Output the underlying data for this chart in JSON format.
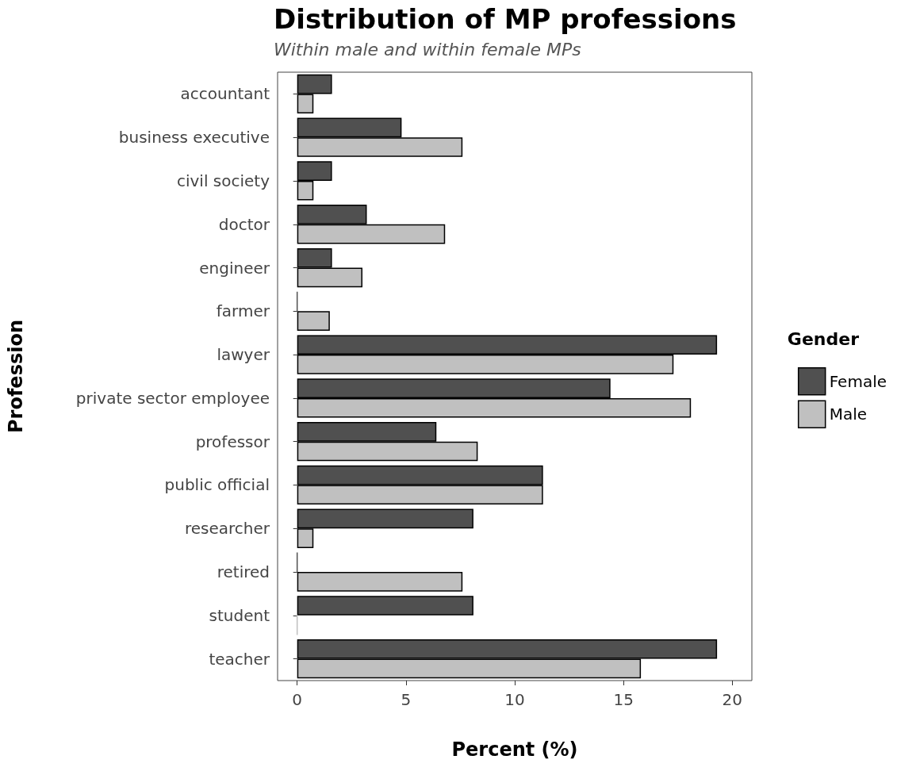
{
  "chart_data": {
    "type": "bar",
    "orientation": "horizontal",
    "title": "Distribution of MP professions",
    "subtitle": "Within male and within female MPs",
    "xlabel": "Percent (%)",
    "ylabel": "Profession",
    "legend_title": "Gender",
    "categories": [
      "accountant",
      "business executive",
      "civil society",
      "doctor",
      "engineer",
      "farmer",
      "lawyer",
      "private sector employee",
      "professor",
      "public official",
      "researcher",
      "retired",
      "student",
      "teacher"
    ],
    "series": [
      {
        "name": "Female",
        "color": "#505050",
        "values": [
          1.6,
          4.8,
          1.6,
          3.2,
          1.6,
          0,
          19.3,
          14.4,
          6.4,
          11.3,
          8.1,
          0,
          8.1,
          19.3
        ]
      },
      {
        "name": "Male",
        "color": "#c0c0c0",
        "values": [
          0.75,
          7.6,
          0.75,
          6.8,
          3.0,
          1.5,
          17.3,
          18.1,
          8.3,
          11.3,
          0.75,
          7.6,
          0,
          15.8
        ]
      }
    ],
    "xlim": [
      -0.9,
      20.9
    ],
    "xticks": [
      0,
      5,
      10,
      15,
      20
    ],
    "grid": false,
    "legend": "right"
  }
}
